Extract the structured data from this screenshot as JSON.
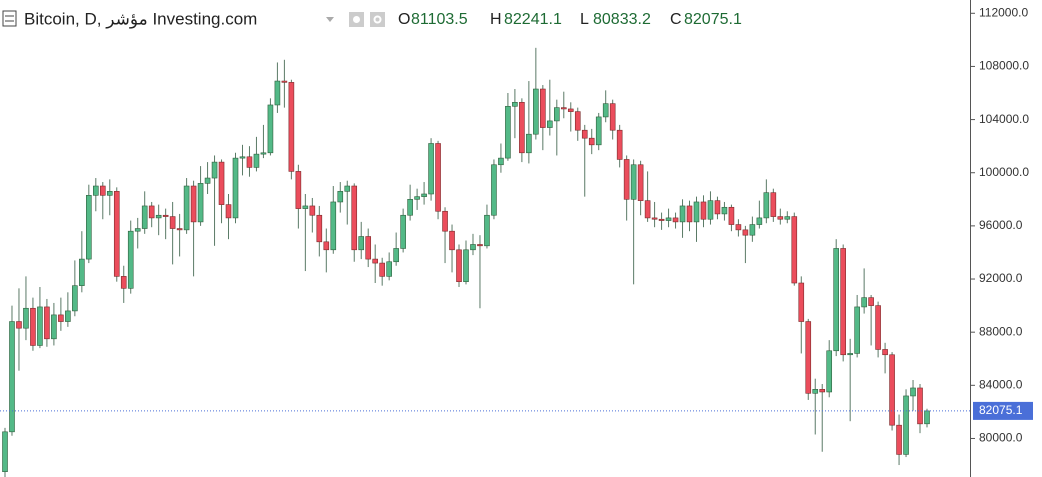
{
  "chart_data": {
    "type": "candlestick",
    "title": "Bitcoin, D, مؤشر Investing.com",
    "ohlc_labels": [
      "O",
      "H",
      "L",
      "C"
    ],
    "open": [
      77500,
      80500,
      88800,
      88300,
      89800,
      87000,
      89900,
      87500,
      89300,
      88800,
      89600,
      91500,
      93500,
      98300,
      99000,
      98300,
      98600,
      92200,
      91300,
      95600,
      95800,
      97500,
      96600,
      96800,
      96700,
      95800,
      95700,
      99000,
      96300,
      99200,
      99600,
      100800,
      97600,
      96600,
      101100,
      101200,
      100400,
      101400,
      101500,
      105100,
      106900,
      106800,
      100100,
      97300,
      97500,
      96800,
      94800,
      94200,
      97800,
      98600,
      99000,
      94200,
      95200,
      93500,
      93200,
      92200,
      93300,
      94300,
      96800,
      98000,
      98200,
      98400,
      102200,
      97100,
      95600,
      94200,
      91800,
      94200,
      94600,
      94500,
      96800,
      100600,
      101100,
      105000,
      105300,
      101500,
      102900,
      106300,
      103400,
      103900,
      104900,
      104800,
      104600,
      103200,
      102600,
      102100,
      104200,
      105200,
      103200,
      101000,
      98000,
      100600,
      97900,
      96600,
      96500,
      96400,
      96600,
      96300,
      97500,
      96300,
      97800,
      96500,
      97900,
      96900,
      97400,
      96100,
      95700,
      95300,
      96100,
      96600,
      98500,
      96700,
      96500,
      96700,
      91700,
      88800,
      83400,
      83700,
      83500,
      86600,
      94300,
      86300,
      86400,
      89900,
      90600,
      90000,
      86700,
      86300,
      81000,
      78800,
      83200,
      83800,
      81103.5
    ],
    "high": [
      80800,
      90000,
      91300,
      92200,
      90600,
      91400,
      90500,
      90200,
      90600,
      91000,
      93400,
      95600,
      99100,
      99600,
      99300,
      99500,
      98900,
      93000,
      96400,
      96600,
      98600,
      97800,
      97600,
      97300,
      97800,
      96900,
      99600,
      99400,
      100500,
      100800,
      101300,
      101000,
      98400,
      101500,
      102100,
      102000,
      102700,
      103600,
      105600,
      108300,
      108500,
      107000,
      100600,
      98400,
      98100,
      97500,
      95800,
      99000,
      99300,
      99400,
      99200,
      96300,
      95800,
      94600,
      93600,
      94000,
      95500,
      97300,
      99100,
      98800,
      99300,
      102600,
      102400,
      97400,
      96100,
      94600,
      94900,
      95400,
      95300,
      97600,
      101000,
      102200,
      106000,
      106300,
      105600,
      106900,
      109400,
      106600,
      107000,
      105500,
      106100,
      105300,
      104900,
      103600,
      103300,
      104500,
      106200,
      105500,
      103600,
      101300,
      101000,
      100900,
      100100,
      97800,
      97000,
      97300,
      97000,
      98000,
      97900,
      98200,
      98300,
      98600,
      98200,
      97800,
      97600,
      96500,
      96000,
      96700,
      97900,
      99500,
      98800,
      97300,
      97100,
      97000,
      92200,
      89000,
      84500,
      84100,
      87400,
      95000,
      94600,
      87500,
      90800,
      92800,
      90800,
      90300,
      87200,
      86500,
      81800,
      83700,
      84400,
      84100,
      82241.1
    ],
    "low": [
      77000,
      80200,
      85100,
      87400,
      86600,
      86800,
      86900,
      87000,
      88100,
      88400,
      89200,
      91000,
      93200,
      97100,
      96500,
      96800,
      91800,
      90200,
      90900,
      94300,
      95400,
      95900,
      95300,
      95000,
      93100,
      93700,
      95400,
      92200,
      96000,
      98400,
      94500,
      96200,
      95000,
      96200,
      99800,
      99700,
      100100,
      101100,
      101300,
      104500,
      104900,
      99500,
      95800,
      92600,
      95500,
      93700,
      92500,
      93900,
      97000,
      96100,
      93300,
      93500,
      92900,
      91700,
      91500,
      91900,
      93000,
      94000,
      96400,
      97200,
      97600,
      97900,
      96500,
      93200,
      92500,
      91400,
      91600,
      93800,
      89800,
      94300,
      96500,
      100000,
      100900,
      102600,
      100800,
      100700,
      102500,
      101700,
      102800,
      101300,
      104100,
      103100,
      102400,
      98200,
      101400,
      101700,
      103800,
      102500,
      100400,
      96400,
      91600,
      96800,
      96300,
      95900,
      95700,
      95900,
      95800,
      95100,
      95600,
      94800,
      95900,
      96100,
      96500,
      96400,
      95600,
      95200,
      93200,
      94800,
      95800,
      96200,
      96300,
      96100,
      96200,
      91500,
      86400,
      82900,
      80300,
      79000,
      83100,
      86200,
      85800,
      81300,
      86100,
      89400,
      87000,
      86100,
      84900,
      80600,
      78000,
      78600,
      82100,
      80400,
      80833.2
    ],
    "close": [
      80500,
      88800,
      88300,
      89800,
      87000,
      89900,
      87500,
      89300,
      88800,
      89600,
      91500,
      93500,
      98300,
      99000,
      98300,
      98600,
      92200,
      91300,
      95600,
      95800,
      97500,
      96600,
      96800,
      96700,
      95800,
      95700,
      99000,
      96300,
      99200,
      99600,
      100800,
      97600,
      96600,
      101100,
      101200,
      100400,
      101400,
      101500,
      105100,
      106900,
      106800,
      100100,
      97300,
      97500,
      96800,
      94800,
      94200,
      97800,
      98600,
      99000,
      94200,
      95200,
      93500,
      93200,
      92200,
      93300,
      94300,
      96800,
      98000,
      98200,
      98400,
      102200,
      97100,
      95600,
      94200,
      91800,
      94200,
      94600,
      94500,
      96800,
      100600,
      101100,
      105000,
      105300,
      101500,
      102900,
      106300,
      103400,
      103900,
      104900,
      104800,
      104600,
      103200,
      102600,
      102100,
      104200,
      105200,
      103200,
      101000,
      98000,
      100600,
      97900,
      96600,
      96500,
      96400,
      96600,
      96300,
      97500,
      96300,
      97800,
      96500,
      97900,
      96900,
      97400,
      96100,
      95700,
      95300,
      96100,
      96600,
      98500,
      96700,
      96500,
      96700,
      91700,
      88800,
      83400,
      83700,
      83500,
      86600,
      94300,
      86300,
      86400,
      89900,
      90600,
      90000,
      86700,
      86300,
      81000,
      78800,
      83200,
      83800,
      81100,
      82075.1
    ],
    "ylim": [
      77100,
      113000
    ],
    "yticks": [
      {
        "value": 80000,
        "label": "80000.0"
      },
      {
        "value": 84000,
        "label": "84000.0"
      },
      {
        "value": 88000,
        "label": "88000.0"
      },
      {
        "value": 92000,
        "label": "92000.0"
      },
      {
        "value": 96000,
        "label": "96000.0"
      },
      {
        "value": 100000,
        "label": "100000.0"
      },
      {
        "value": 104000,
        "label": "104000.0"
      },
      {
        "value": 108000,
        "label": "108000.0"
      },
      {
        "value": 112000,
        "label": "112000.0"
      }
    ],
    "up_color": "#53b987",
    "down_color": "#eb4d5c",
    "wick_color": "#5a7a66",
    "last_price_color": "#4a6fd8"
  }
}
